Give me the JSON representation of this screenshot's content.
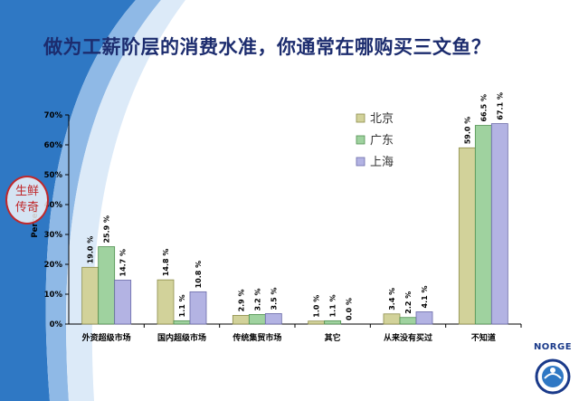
{
  "title": "做为工薪阶层的消费水准，你通常在哪购买三文鱼？",
  "stamp": {
    "line1": "生鲜",
    "line2": "传奇"
  },
  "logo": {
    "text": "NORGE"
  },
  "colors": {
    "title": "#1c2c6e",
    "background_swoosh": "#2f78c4",
    "series": [
      "#d2d29a",
      "#9fd29f",
      "#b3b3e3"
    ],
    "series_stroke": [
      "#8c8c4a",
      "#4f8f4f",
      "#6a6aa8"
    ]
  },
  "chart_data": {
    "type": "bar",
    "title": "",
    "xlabel": "",
    "ylabel": "Percent",
    "ylim": [
      0,
      70
    ],
    "yticks": [
      "0%",
      "10%",
      "20%",
      "30%",
      "40%",
      "50%",
      "60%",
      "70%"
    ],
    "grid": false,
    "legend_position": "top-center",
    "categories": [
      "外资超级市场",
      "国内超级市场",
      "传统集贸市场",
      "其它",
      "从来没有买过",
      "不知道"
    ],
    "series": [
      {
        "name": "北京",
        "values": [
          19.0,
          14.8,
          2.9,
          1.0,
          3.4,
          59.0
        ],
        "labels": [
          "19.0 %",
          "14.8 %",
          "2.9 %",
          "1.0 %",
          "3.4 %",
          "59.0 %"
        ]
      },
      {
        "name": "广东",
        "values": [
          25.9,
          1.1,
          3.2,
          1.1,
          2.2,
          66.5
        ],
        "labels": [
          "25.9 %",
          "1.1 %",
          "3.2 %",
          "1.1 %",
          "2.2 %",
          "66.5 %"
        ]
      },
      {
        "name": "上海",
        "values": [
          14.7,
          10.8,
          3.5,
          0.0,
          4.1,
          67.1
        ],
        "labels": [
          "14.7 %",
          "10.8 %",
          "3.5 %",
          "0.0 %",
          "4.1 %",
          "67.1 %"
        ]
      }
    ]
  }
}
